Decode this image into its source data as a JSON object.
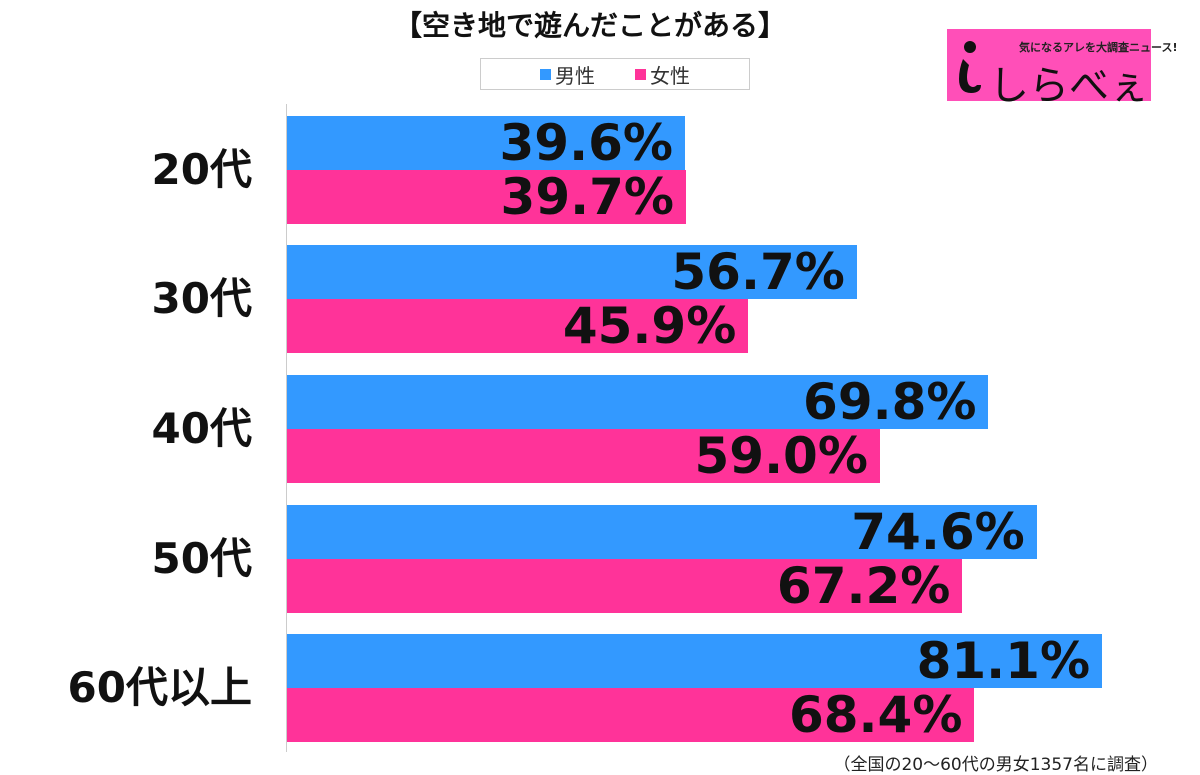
{
  "chart_data": {
    "type": "bar",
    "orientation": "horizontal",
    "title": "【空き地で遊んだことがある】",
    "categories": [
      "20代",
      "30代",
      "40代",
      "50代",
      "60代以上"
    ],
    "series": [
      {
        "name": "男性",
        "color": "#3399ff",
        "values": [
          39.6,
          56.7,
          69.8,
          74.6,
          81.1
        ],
        "labels": [
          "39.6%",
          "56.7%",
          "69.8%",
          "74.6%",
          "81.1%"
        ]
      },
      {
        "name": "女性",
        "color": "#ff3399",
        "values": [
          39.7,
          45.9,
          59.0,
          67.2,
          68.4
        ],
        "labels": [
          "39.7%",
          "45.9%",
          "59.0%",
          "67.2%",
          "68.4%"
        ]
      }
    ],
    "xlim": [
      0,
      90
    ],
    "legend_position": "top-center",
    "grid": false
  },
  "logo": {
    "tagline": "気になるアレを大調査ニュース!",
    "name": "しらべぇ"
  },
  "footnote": "（全国の20〜60代の男女1357名に調査）"
}
